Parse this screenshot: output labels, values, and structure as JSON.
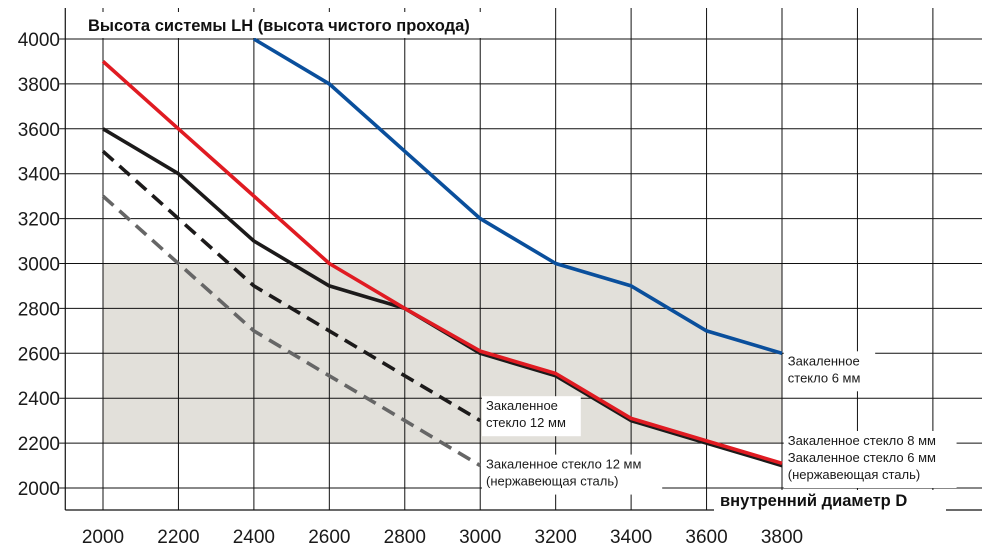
{
  "chart_data": {
    "type": "line",
    "title": "",
    "ylabel": "Высота системы LH (высота чистого прохода)",
    "xlabel": "внутренний диаметр D",
    "x_ticks": [
      2000,
      2200,
      2400,
      2600,
      2800,
      3000,
      3200,
      3400,
      3600,
      3800
    ],
    "y_ticks": [
      2000,
      2200,
      2400,
      2600,
      2800,
      3000,
      3200,
      3400,
      3600,
      3800,
      4000
    ],
    "xlim": [
      1900,
      4400
    ],
    "ylim": [
      1900,
      4050
    ],
    "grid": true,
    "shaded_band": {
      "y_from": 2200,
      "y_to": 3000,
      "x_from": 2000,
      "x_to": 3800,
      "color": "#e2e0da"
    },
    "series": [
      {
        "key": "blue",
        "color": "#0a4f9c",
        "dash": "solid",
        "x": [
          2400,
          2600,
          2800,
          3000,
          3200,
          3400,
          3600,
          3800
        ],
        "y": [
          4000,
          3800,
          3500,
          3200,
          3000,
          2900,
          2700,
          2600
        ]
      },
      {
        "key": "red",
        "color": "#e01b22",
        "dash": "solid",
        "x": [
          2000,
          2200,
          2400,
          2600,
          2800,
          3000,
          3200,
          3400,
          3600,
          3800
        ],
        "y": [
          3900,
          3600,
          3300,
          3000,
          2800,
          2610,
          2510,
          2310,
          2210,
          2110
        ]
      },
      {
        "key": "black",
        "color": "#1c1a1a",
        "dash": "solid",
        "x": [
          2000,
          2200,
          2400,
          2600,
          2800,
          3000,
          3200,
          3400,
          3600,
          3800
        ],
        "y": [
          3600,
          3400,
          3100,
          2900,
          2800,
          2600,
          2500,
          2300,
          2200,
          2100
        ]
      },
      {
        "key": "black-dashed",
        "color": "#1c1a1a",
        "dash": "dashed",
        "x": [
          2000,
          2200,
          2400,
          2600,
          2800,
          3000
        ],
        "y": [
          3500,
          3200,
          2900,
          2700,
          2500,
          2300
        ]
      },
      {
        "key": "gray-dashed",
        "color": "#666666",
        "dash": "dashed",
        "x": [
          2000,
          2200,
          2400,
          2600,
          2800,
          3000
        ],
        "y": [
          3300,
          3000,
          2700,
          2500,
          2300,
          2100
        ]
      }
    ],
    "annotations": [
      {
        "lines": [
          "Закаленное",
          "стекло 6 мм"
        ],
        "at_x": 3810,
        "at_y": 2600,
        "anchor": "top-left"
      },
      {
        "lines": [
          "Закаленное стекло 8 мм",
          "Закаленное стекло 6 мм",
          "(нержавеющая сталь)"
        ],
        "at_x": 3810,
        "at_y": 2245,
        "anchor": "top-left"
      },
      {
        "lines": [
          "Закаленное",
          "стекло 12 мм"
        ],
        "at_x": 3010,
        "at_y": 2400,
        "anchor": "top-left"
      },
      {
        "lines": [
          "Закаленное стекло 12 мм",
          "(нержавеющая сталь)"
        ],
        "at_x": 3010,
        "at_y": 2140,
        "anchor": "top-left"
      }
    ]
  }
}
